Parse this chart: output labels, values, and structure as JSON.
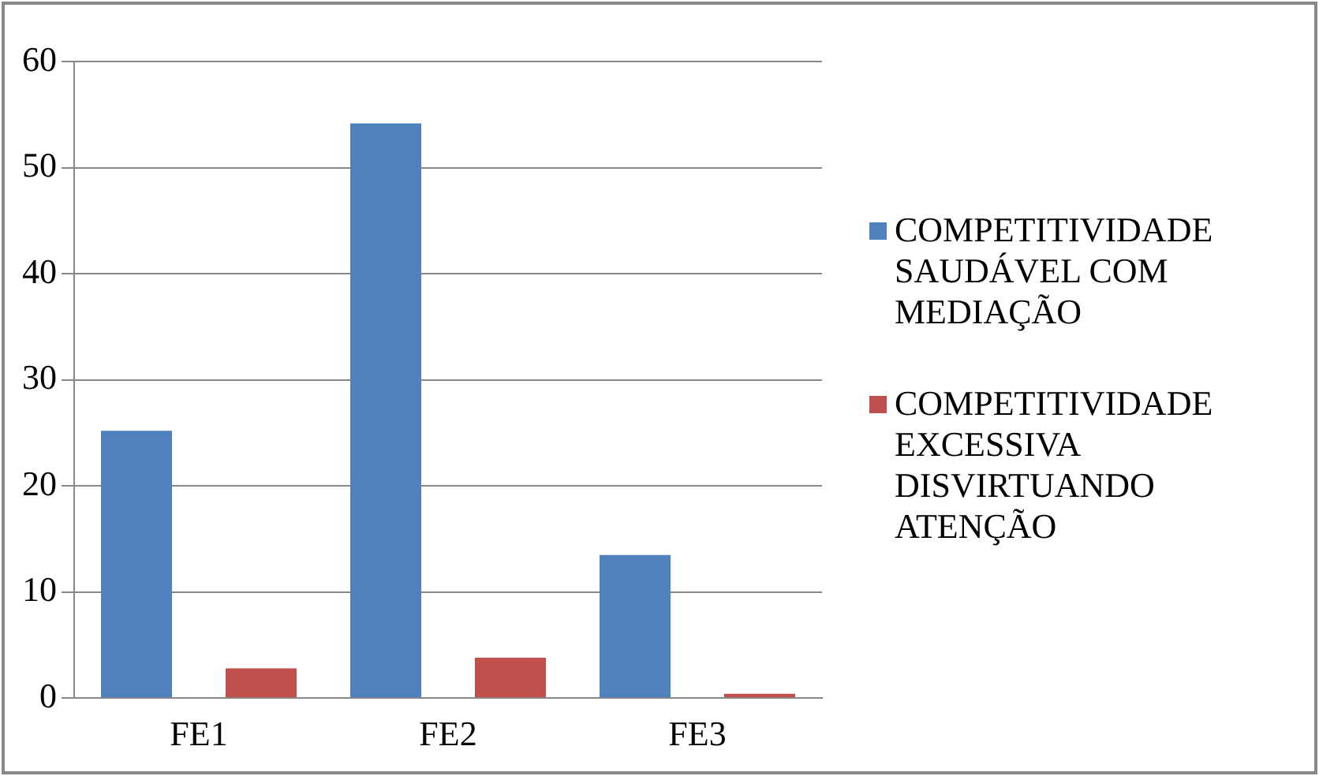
{
  "chart_data": {
    "type": "bar",
    "categories": [
      "FE1",
      "FE2",
      "FE3"
    ],
    "series": [
      {
        "name": "COMPETITIVIDADE SAUDÁVEL COM MEDIAÇÃO",
        "color": "#4f81bd",
        "values": [
          25.2,
          54.2,
          13.5
        ]
      },
      {
        "name": "COMPETITIVIDADE EXCESSIVA DISVIRTUANDO ATENÇÃO",
        "color": "#c0504d",
        "values": [
          2.8,
          3.8,
          0.4
        ]
      }
    ],
    "ylim": [
      0,
      60
    ],
    "yticks": [
      0,
      10,
      20,
      30,
      40,
      50,
      60
    ],
    "grid": "y",
    "legend": "right"
  }
}
